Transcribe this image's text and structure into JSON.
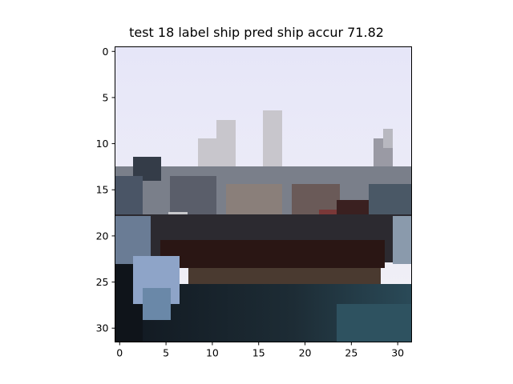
{
  "figure": {
    "title": "test 18 label ship pred ship accur 71.82"
  },
  "image_plot": {
    "content": "pixelated 32x32 image of a ship on water under a pale sky",
    "xlim": [
      -0.5,
      31.5
    ],
    "ylim": [
      31.5,
      -0.5
    ],
    "xticks": [
      0,
      5,
      10,
      15,
      20,
      25,
      30
    ],
    "yticks": [
      0,
      5,
      10,
      15,
      20,
      25,
      30
    ],
    "colors": {
      "sky": "#e8e8f8",
      "water": "#1f2a33",
      "hull": "#2a1a1a",
      "axis": "#000000"
    }
  }
}
